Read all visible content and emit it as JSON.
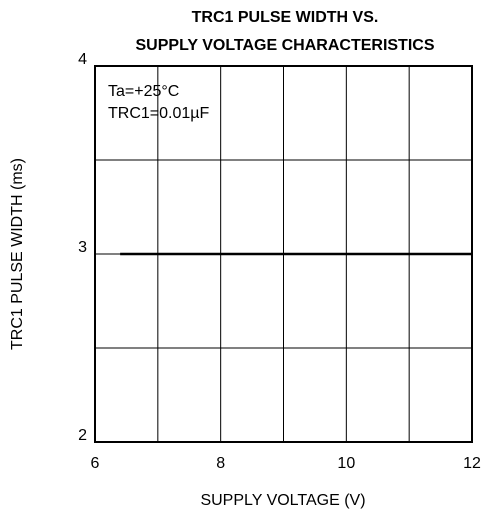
{
  "chart_data": {
    "type": "line",
    "title": [
      "TRC1 PULSE WIDTH VS.",
      "SUPPLY VOLTAGE CHARACTERISTICS"
    ],
    "xlabel": "SUPPLY VOLTAGE (V)",
    "ylabel": "TRC1 PULSE WIDTH (ms)",
    "annotations": [
      "Ta=+25°C",
      "TRC1=0.01µF"
    ],
    "x": [
      6.4,
      12
    ],
    "series": [
      {
        "color": "#000000",
        "values": [
          3,
          3
        ]
      }
    ],
    "xlim": [
      6,
      12
    ],
    "xticks": [
      6,
      8,
      10,
      12
    ],
    "x_minor_grid": [
      7,
      9,
      11
    ],
    "ylim": [
      2,
      4
    ],
    "yticks": [
      2,
      3,
      4
    ],
    "y_minor_grid": [
      2.5,
      3.5
    ],
    "grid": true
  }
}
